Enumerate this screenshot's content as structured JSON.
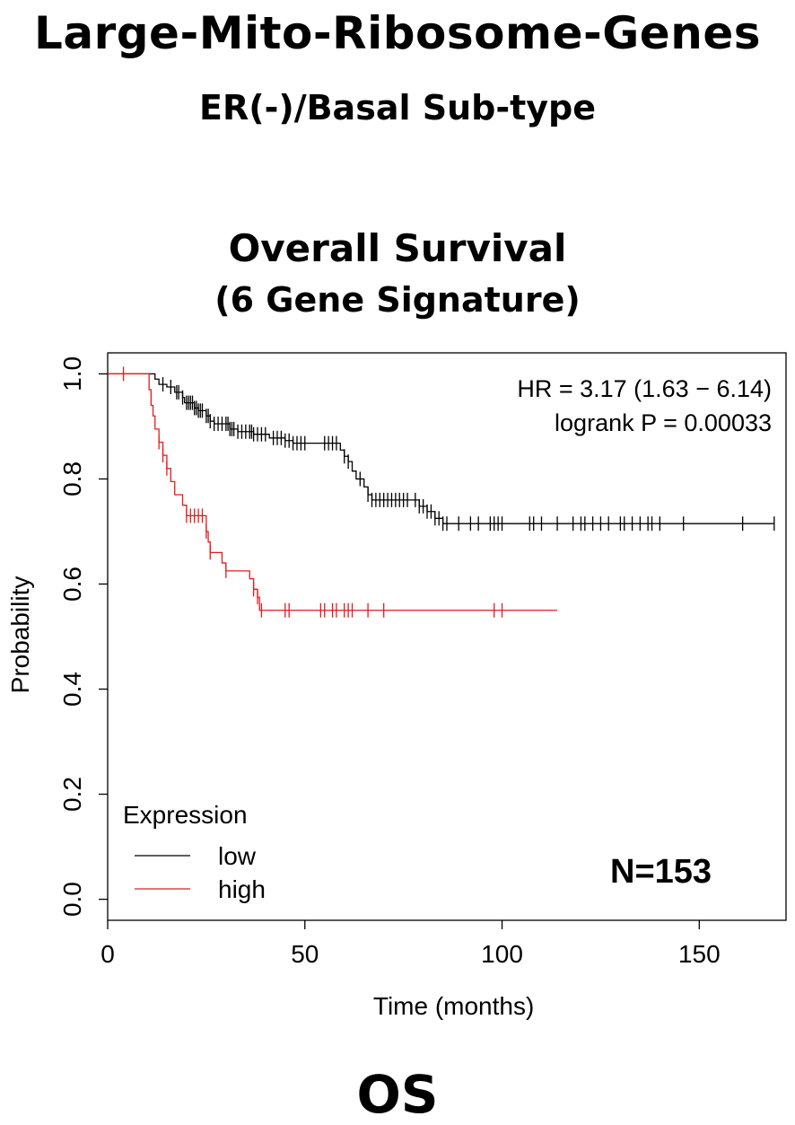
{
  "header": {
    "title": "Large-Mito-Ribosome-Genes",
    "subtitle": "ER(-)/Basal Sub-type",
    "chart_title": "Overall Survival",
    "chart_subtitle": "(6 Gene Signature)",
    "footer": "OS"
  },
  "chart_data": {
    "type": "line",
    "title": "Overall Survival",
    "subtitle": "(6 Gene Signature)",
    "xlabel": "Time (months)",
    "ylabel": "Probability",
    "xlim": [
      0,
      172
    ],
    "ylim": [
      -0.04,
      1.04
    ],
    "xticks": [
      0,
      50,
      100,
      150
    ],
    "yticks": [
      0.0,
      0.2,
      0.4,
      0.6,
      0.8,
      1.0
    ],
    "ytick_labels": [
      "0.0",
      "0.2",
      "0.4",
      "0.6",
      "0.8",
      "1.0"
    ],
    "hr_text": "HR = 3.17 (1.63 − 6.14)",
    "logrank_text": "logrank P = 0.00033",
    "n_label": "N=153",
    "legend": {
      "title": "Expression",
      "position": "bottom-left"
    },
    "series": [
      {
        "name": "low",
        "color": "#000000",
        "steps": [
          [
            0,
            1.0
          ],
          [
            11,
            1.0
          ],
          [
            12,
            0.99
          ],
          [
            13,
            0.98
          ],
          [
            15,
            0.975
          ],
          [
            17,
            0.965
          ],
          [
            19,
            0.955
          ],
          [
            19.5,
            0.945
          ],
          [
            22,
            0.935
          ],
          [
            23,
            0.93
          ],
          [
            25,
            0.92
          ],
          [
            26,
            0.91
          ],
          [
            27,
            0.905
          ],
          [
            31,
            0.895
          ],
          [
            33,
            0.89
          ],
          [
            37,
            0.885
          ],
          [
            41,
            0.878
          ],
          [
            45,
            0.873
          ],
          [
            47,
            0.868
          ],
          [
            59,
            0.855
          ],
          [
            60,
            0.843
          ],
          [
            61,
            0.833
          ],
          [
            62,
            0.815
          ],
          [
            63,
            0.8
          ],
          [
            65,
            0.785
          ],
          [
            66,
            0.77
          ],
          [
            67,
            0.76
          ],
          [
            79,
            0.748
          ],
          [
            81,
            0.738
          ],
          [
            83,
            0.725
          ],
          [
            85,
            0.715
          ],
          [
            169,
            0.715
          ]
        ],
        "censor": [
          14,
          16,
          17.5,
          18,
          19,
          20,
          20.5,
          21,
          21.5,
          22,
          22.5,
          23,
          23.5,
          24,
          25,
          25.5,
          26,
          27,
          28,
          29,
          30,
          30.5,
          31,
          31.5,
          32,
          33,
          34,
          35,
          36,
          36.5,
          37,
          38,
          39,
          40,
          42,
          43,
          44,
          45,
          46,
          47,
          48,
          49,
          50,
          55,
          56,
          57,
          58,
          60,
          61,
          64,
          66,
          67,
          68,
          69,
          70,
          71,
          72,
          73,
          74,
          75,
          76,
          78,
          79,
          80,
          81,
          82,
          83,
          84,
          85,
          86,
          89,
          92,
          94,
          97,
          98,
          99,
          100,
          107,
          108,
          110,
          114,
          118,
          120,
          121,
          123,
          125,
          127,
          130,
          131,
          133,
          135,
          137,
          138,
          140,
          146,
          161,
          169
        ]
      },
      {
        "name": "high",
        "color": "#e41a1c",
        "steps": [
          [
            0,
            1.0
          ],
          [
            10,
            1.0
          ],
          [
            10.5,
            0.97
          ],
          [
            11,
            0.94
          ],
          [
            11.5,
            0.92
          ],
          [
            12,
            0.895
          ],
          [
            13,
            0.87
          ],
          [
            14,
            0.845
          ],
          [
            15,
            0.82
          ],
          [
            16,
            0.795
          ],
          [
            17,
            0.77
          ],
          [
            19,
            0.75
          ],
          [
            20,
            0.73
          ],
          [
            25,
            0.7
          ],
          [
            25.5,
            0.68
          ],
          [
            26,
            0.66
          ],
          [
            29,
            0.64
          ],
          [
            30,
            0.625
          ],
          [
            36,
            0.61
          ],
          [
            37,
            0.59
          ],
          [
            38,
            0.575
          ],
          [
            38.5,
            0.55
          ],
          [
            114,
            0.55
          ]
        ],
        "censor": [
          4,
          13,
          14,
          15,
          20,
          21,
          22,
          23,
          24,
          25,
          26,
          30,
          37,
          38,
          39,
          45,
          46,
          54,
          55,
          57,
          58,
          60,
          61,
          62,
          66,
          70,
          98,
          100
        ]
      }
    ]
  }
}
